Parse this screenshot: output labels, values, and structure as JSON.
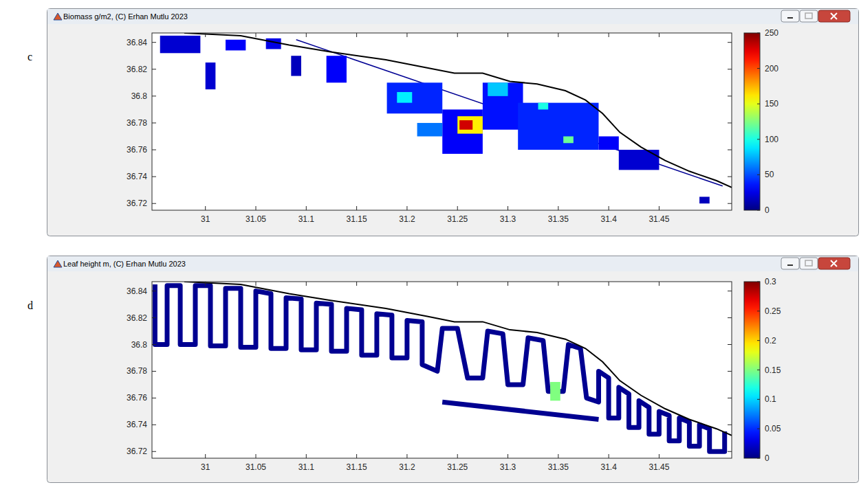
{
  "chart_data": [
    {
      "type": "heatmap",
      "panel": "c",
      "title": "Biomass g/m2, (C) Erhan Mutlu 2023",
      "xlim": [
        30.947,
        31.522
      ],
      "ylim": [
        36.715,
        36.847
      ],
      "xticks": [
        31,
        31.05,
        31.1,
        31.15,
        31.2,
        31.25,
        31.3,
        31.35,
        31.4,
        31.45
      ],
      "yticks": [
        36.72,
        36.74,
        36.76,
        36.78,
        36.8,
        36.82,
        36.84
      ],
      "coastline": {
        "lon": [
          30.979,
          31.035,
          31.083,
          31.124,
          31.179,
          31.22,
          31.247,
          31.275,
          31.302,
          31.329,
          31.357,
          31.377,
          31.394,
          31.411,
          31.432,
          31.456,
          31.48,
          31.507,
          31.522
        ],
        "lat": [
          36.847,
          36.845,
          36.838,
          36.833,
          36.827,
          36.821,
          36.817,
          36.817,
          36.811,
          36.809,
          36.804,
          36.797,
          36.787,
          36.773,
          36.762,
          36.752,
          36.744,
          36.737,
          36.732
        ]
      },
      "patches": [
        {
          "lon": [
            30.955,
            30.995
          ],
          "lat": [
            36.832,
            36.845
          ],
          "value": 20
        },
        {
          "lon": [
            31.02,
            31.04
          ],
          "lat": [
            36.834,
            36.842
          ],
          "value": 30
        },
        {
          "lon": [
            31.06,
            31.075
          ],
          "lat": [
            36.835,
            36.843
          ],
          "value": 25
        },
        {
          "lon": [
            31.0,
            31.01
          ],
          "lat": [
            36.805,
            36.825
          ],
          "value": 20
        },
        {
          "lon": [
            31.085,
            31.095
          ],
          "lat": [
            36.815,
            36.83
          ],
          "value": 15
        },
        {
          "lon": [
            31.12,
            31.14
          ],
          "lat": [
            36.81,
            36.83
          ],
          "value": 30
        },
        {
          "lon": [
            31.18,
            31.235
          ],
          "lat": [
            36.787,
            36.81
          ],
          "value": 40
        },
        {
          "lon": [
            31.235,
            31.275
          ],
          "lat": [
            36.757,
            36.79
          ],
          "value": 30
        },
        {
          "lon": [
            31.275,
            31.315
          ],
          "lat": [
            36.775,
            36.81
          ],
          "value": 35
        },
        {
          "lon": [
            31.31,
            31.39
          ],
          "lat": [
            36.76,
            36.795
          ],
          "value": 40
        },
        {
          "lon": [
            31.39,
            31.41
          ],
          "lat": [
            36.76,
            36.77
          ],
          "value": 30
        },
        {
          "lon": [
            31.41,
            31.45
          ],
          "lat": [
            36.745,
            36.76
          ],
          "value": 20
        },
        {
          "lon": [
            31.49,
            31.5
          ],
          "lat": [
            36.72,
            36.725
          ],
          "value": 15
        },
        {
          "lon": [
            31.21,
            31.235
          ],
          "lat": [
            36.77,
            36.78
          ],
          "value": 60
        },
        {
          "lon": [
            31.19,
            31.205
          ],
          "lat": [
            36.795,
            36.803
          ],
          "value": 90
        },
        {
          "lon": [
            31.28,
            31.3
          ],
          "lat": [
            36.8,
            36.81
          ],
          "value": 80
        },
        {
          "lon": [
            31.33,
            31.34
          ],
          "lat": [
            36.79,
            36.795
          ],
          "value": 100
        },
        {
          "lon": [
            31.355,
            31.365
          ],
          "lat": [
            36.765,
            36.77
          ],
          "value": 120
        },
        {
          "lon": [
            31.25,
            31.275
          ],
          "lat": [
            36.772,
            36.785
          ],
          "value": 160
        },
        {
          "lon": [
            31.252,
            31.265
          ],
          "lat": [
            36.775,
            36.782
          ],
          "value": 230
        }
      ],
      "tracks": [
        {
          "lon": [
            31.09,
            31.513
          ],
          "lat": [
            36.842,
            36.733
          ],
          "value": 5
        }
      ],
      "colorbar": {
        "range": [
          0,
          250
        ],
        "ticks": [
          0,
          50,
          100,
          150,
          200,
          250
        ]
      }
    },
    {
      "type": "heatmap",
      "panel": "d",
      "title": "Leaf height m, (C) Erhan Mutlu 2023",
      "xlim": [
        30.947,
        31.522
      ],
      "ylim": [
        36.715,
        36.847
      ],
      "xticks": [
        31,
        31.05,
        31.1,
        31.15,
        31.2,
        31.25,
        31.3,
        31.35,
        31.4,
        31.45
      ],
      "yticks": [
        36.72,
        36.74,
        36.76,
        36.78,
        36.8,
        36.82,
        36.84
      ],
      "coastline": {
        "lon": [
          30.979,
          31.035,
          31.083,
          31.124,
          31.179,
          31.22,
          31.247,
          31.275,
          31.302,
          31.329,
          31.357,
          31.377,
          31.394,
          31.411,
          31.432,
          31.456,
          31.48,
          31.507,
          31.522
        ],
        "lat": [
          36.847,
          36.845,
          36.838,
          36.833,
          36.827,
          36.821,
          36.817,
          36.817,
          36.811,
          36.809,
          36.804,
          36.797,
          36.787,
          36.773,
          36.762,
          36.752,
          36.744,
          36.737,
          36.732
        ]
      },
      "patches": [
        {
          "lon": [
            31.342,
            31.352
          ],
          "lat": [
            36.758,
            36.772
          ],
          "value": 0.15
        }
      ],
      "tracks": [
        {
          "lon": [
            30.95,
            30.95,
            30.962,
            30.962,
            30.975,
            30.975,
            30.99,
            30.99,
            31.005,
            31.005,
            31.02,
            31.02,
            31.035,
            31.035,
            31.05,
            31.05,
            31.065,
            31.065,
            31.08,
            31.08,
            31.095,
            31.095,
            31.11,
            31.11,
            31.125,
            31.125,
            31.14,
            31.14,
            31.155,
            31.155,
            31.17,
            31.17,
            31.185,
            31.185,
            31.2,
            31.2,
            31.215,
            31.215,
            31.23,
            31.235,
            31.25,
            31.26,
            31.275,
            31.28,
            31.295,
            31.3,
            31.315,
            31.32,
            31.335,
            31.34,
            31.355,
            31.36,
            31.372,
            31.378,
            31.39,
            31.39,
            31.4,
            31.4,
            31.41,
            31.41,
            31.42,
            31.42,
            31.43,
            31.43,
            31.44,
            31.44,
            31.45,
            31.45,
            31.46,
            31.46,
            31.47,
            31.47,
            31.48,
            31.48,
            31.49,
            31.49,
            31.5,
            31.5,
            31.515,
            31.515
          ],
          "lat": [
            36.845,
            36.8,
            36.8,
            36.844,
            36.844,
            36.8,
            36.8,
            36.844,
            36.844,
            36.799,
            36.799,
            36.842,
            36.842,
            36.798,
            36.798,
            36.84,
            36.838,
            36.797,
            36.797,
            36.835,
            36.834,
            36.796,
            36.796,
            36.831,
            36.83,
            36.795,
            36.795,
            36.827,
            36.826,
            36.792,
            36.792,
            36.823,
            36.822,
            36.79,
            36.79,
            36.818,
            36.817,
            36.785,
            36.78,
            36.812,
            36.812,
            36.775,
            36.775,
            36.81,
            36.808,
            36.77,
            36.77,
            36.805,
            36.803,
            36.765,
            36.765,
            36.8,
            36.797,
            36.76,
            36.757,
            36.78,
            36.775,
            36.745,
            36.745,
            36.768,
            36.763,
            36.738,
            36.738,
            36.758,
            36.753,
            36.733,
            36.733,
            36.75,
            36.747,
            36.728,
            36.728,
            36.745,
            36.742,
            36.724,
            36.724,
            36.74,
            36.737,
            36.72,
            36.72,
            36.735
          ],
          "value": 0.005
        },
        {
          "lon": [
            31.235,
            31.39
          ],
          "lat": [
            36.757,
            36.744
          ],
          "value": 0.005
        }
      ],
      "colorbar": {
        "range": [
          0,
          0.3
        ],
        "ticks": [
          0,
          0.05,
          0.1,
          0.15,
          0.2,
          0.25,
          0.3
        ]
      }
    }
  ]
}
